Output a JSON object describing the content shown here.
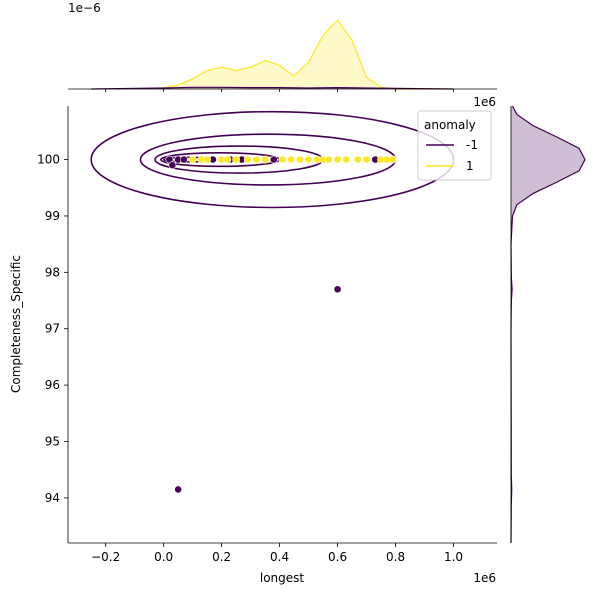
{
  "chart_data": {
    "type": "scatter",
    "xlabel": "longest",
    "ylabel": "Completeness_Specific",
    "x_multiplier_label": "1e6",
    "y_top_multiplier_label": "1e6",
    "top_marginal_multiplier_label": "1e−6",
    "xlim": [
      -0.33,
      1.15
    ],
    "ylim": [
      93.2,
      100.95
    ],
    "x_ticks": [
      -0.2,
      0.0,
      0.2,
      0.4,
      0.6,
      0.8,
      1.0
    ],
    "x_tick_labels": [
      "−0.2",
      "0.0",
      "0.2",
      "0.4",
      "0.6",
      "0.8",
      "1.0"
    ],
    "y_ticks": [
      94,
      95,
      96,
      97,
      98,
      99,
      100
    ],
    "y_tick_labels": [
      "94",
      "95",
      "96",
      "97",
      "98",
      "99",
      "100"
    ],
    "grid": false,
    "legend": {
      "title": "anomaly",
      "placement": "top-right",
      "entries": [
        {
          "label": "-1",
          "color": "#440154"
        },
        {
          "label": "1",
          "color": "#fde725"
        }
      ]
    },
    "series": [
      {
        "name": "-1",
        "color": "#440154",
        "points": [
          [
            0.02,
            100.0
          ],
          [
            0.03,
            99.9
          ],
          [
            0.05,
            100.0
          ],
          [
            0.07,
            100.0
          ],
          [
            0.17,
            100.0
          ],
          [
            0.23,
            100.0
          ],
          [
            0.27,
            100.0
          ],
          [
            0.38,
            100.0
          ],
          [
            0.6,
            97.7
          ],
          [
            0.73,
            100.0
          ],
          [
            0.05,
            94.15
          ]
        ]
      },
      {
        "name": "1",
        "color": "#fde725",
        "points": [
          [
            0.1,
            100.0
          ],
          [
            0.13,
            100.0
          ],
          [
            0.15,
            100.0
          ],
          [
            0.2,
            100.0
          ],
          [
            0.22,
            100.0
          ],
          [
            0.25,
            100.0
          ],
          [
            0.29,
            100.0
          ],
          [
            0.32,
            100.0
          ],
          [
            0.35,
            100.0
          ],
          [
            0.41,
            100.0
          ],
          [
            0.44,
            100.0
          ],
          [
            0.47,
            100.0
          ],
          [
            0.5,
            100.0
          ],
          [
            0.53,
            100.0
          ],
          [
            0.55,
            100.0
          ],
          [
            0.57,
            100.0
          ],
          [
            0.6,
            100.0
          ],
          [
            0.63,
            100.0
          ],
          [
            0.67,
            100.0
          ],
          [
            0.7,
            100.0
          ],
          [
            0.75,
            100.0
          ],
          [
            0.77,
            100.0
          ],
          [
            0.79,
            100.0
          ]
        ]
      }
    ],
    "contour_levels": [
      {
        "x_range": [
          0.0,
          0.17
        ],
        "y_range": [
          99.96,
          100.04
        ]
      },
      {
        "x_range": [
          -0.01,
          0.4
        ],
        "y_range": [
          99.88,
          100.12
        ]
      },
      {
        "x_range": [
          -0.03,
          0.55
        ],
        "y_range": [
          99.76,
          100.24
        ]
      },
      {
        "x_range": [
          -0.08,
          0.8
        ],
        "y_range": [
          99.55,
          100.45
        ]
      },
      {
        "x_range": [
          -0.25,
          1.0
        ],
        "y_range": [
          99.15,
          100.85
        ]
      }
    ],
    "top_marginal": {
      "series": [
        {
          "name": "1",
          "color": "#fde725",
          "points": [
            [
              -0.1,
              0.0
            ],
            [
              0.0,
              0.03
            ],
            [
              0.05,
              0.12
            ],
            [
              0.1,
              0.3
            ],
            [
              0.15,
              0.55
            ],
            [
              0.2,
              0.65
            ],
            [
              0.25,
              0.55
            ],
            [
              0.3,
              0.65
            ],
            [
              0.35,
              0.85
            ],
            [
              0.4,
              0.7
            ],
            [
              0.45,
              0.38
            ],
            [
              0.5,
              0.8
            ],
            [
              0.55,
              1.6
            ],
            [
              0.6,
              2.05
            ],
            [
              0.65,
              1.45
            ],
            [
              0.7,
              0.35
            ],
            [
              0.75,
              0.05
            ],
            [
              0.8,
              0.0
            ],
            [
              1.0,
              0.0
            ]
          ]
        },
        {
          "name": "-1",
          "color": "#440154",
          "points": [
            [
              -0.25,
              0.0
            ],
            [
              0.0,
              0.03
            ],
            [
              0.1,
              0.05
            ],
            [
              0.2,
              0.05
            ],
            [
              0.3,
              0.04
            ],
            [
              0.4,
              0.04
            ],
            [
              0.5,
              0.03
            ],
            [
              0.6,
              0.04
            ],
            [
              0.7,
              0.03
            ],
            [
              0.8,
              0.02
            ],
            [
              1.0,
              0.0
            ]
          ]
        }
      ],
      "ymax": 2.2
    },
    "right_marginal": {
      "series": [
        {
          "name": "-1",
          "color": "#440154",
          "points": [
            [
              100.95,
              0.02
            ],
            [
              100.8,
              0.08
            ],
            [
              100.6,
              0.3
            ],
            [
              100.4,
              0.62
            ],
            [
              100.2,
              0.92
            ],
            [
              100.0,
              1.0
            ],
            [
              99.8,
              0.92
            ],
            [
              99.6,
              0.62
            ],
            [
              99.4,
              0.3
            ],
            [
              99.2,
              0.08
            ],
            [
              99.0,
              0.02
            ],
            [
              98.5,
              0.0
            ],
            [
              97.9,
              0.005
            ],
            [
              97.7,
              0.015
            ],
            [
              97.5,
              0.005
            ],
            [
              97.0,
              0.0
            ],
            [
              94.4,
              0.004
            ],
            [
              94.15,
              0.01
            ],
            [
              93.9,
              0.004
            ],
            [
              93.2,
              0.0
            ]
          ]
        }
      ],
      "xmax": 1.0
    }
  }
}
